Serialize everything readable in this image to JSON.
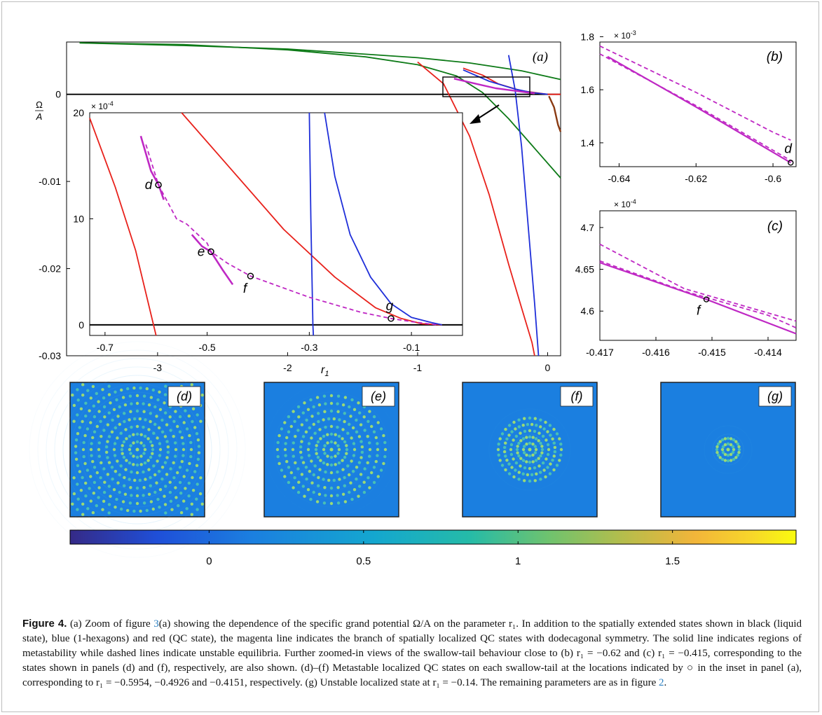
{
  "figure": {
    "caption_label": "Figure 4.",
    "caption_parts": {
      "p1": " (a)  Zoom of figure ",
      "ref3": "3",
      "p2": "(a) showing the dependence of the specific grand potential Ω/A on the parameter r₁. In addition to the spatially extended states shown in black (liquid state), blue (1-hexagons) and red (QC state), the magenta line indicates the branch of spatially localized QC states with dodecagonal symmetry. The solid line indicates regions of metastability while dashed lines indicate unstable equilibria. Further zoomed-in views of the swallow-tail behaviour close to (b) r₁ = −0.62 and (c) r₁ = −0.415, corresponding to the states shown in panels (d) and (f), respectively, are also shown. (d)–(f)  Metastable localized QC states on each swallow-tail at the locations indicated by ○ in the inset in panel (a), corresponding to r₁ = −0.5954, −0.4926 and −0.4151, respectively. (g)  Unstable localized state at r₁ = −0.14. The remaining parameters are as in figure ",
      "ref2": "2",
      "p3": "."
    }
  },
  "colors": {
    "liquid": "#000000",
    "hexagons": "#1f2fd9",
    "qc": "#e8211b",
    "localized": "#bf28c4",
    "extended_green": "#0d7a17",
    "brown": "#8a3a12"
  },
  "chart_data": [
    {
      "panel": "(a)",
      "type": "line",
      "xlabel": "r₁",
      "ylabel": "Ω/A",
      "xticks": [
        "-3",
        "-2",
        "-1",
        "0"
      ],
      "yticks": [
        "-0.03",
        "-0.02",
        "-0.01",
        "0"
      ],
      "xlim": [
        -3.7,
        0.1
      ],
      "ylim": [
        -0.03,
        0.006
      ],
      "series": [
        {
          "color": "green",
          "x": [
            -3.6,
            -2,
            -1,
            -0.6,
            -0.2,
            0.1
          ],
          "y": [
            0.0059,
            0.0052,
            0.0042,
            0.0035,
            0.0026,
            0.0017
          ]
        },
        {
          "color": "green",
          "x": [
            -3.6,
            -2,
            -1,
            -0.5,
            -0.3,
            0.1
          ],
          "y": [
            0.0059,
            0.005,
            0.0033,
            -0.0005,
            -0.0045,
            -0.0096
          ]
        },
        {
          "color": "black",
          "x": [
            -3.7,
            0.1
          ],
          "y": [
            0,
            0
          ]
        }
      ],
      "annotations": [
        "(a)",
        "inset box",
        "arrow"
      ]
    },
    {
      "panel": "(a) inset",
      "type": "line",
      "yscale_label": "× 10⁻⁴",
      "xticks": [
        "-0.7",
        "-0.5",
        "-0.3",
        "-0.1"
      ],
      "yticks": [
        "0",
        "10",
        "20"
      ],
      "xlim": [
        -0.73,
        0
      ],
      "ylim": [
        -1,
        20
      ],
      "point_labels": [
        "d",
        "e",
        "f",
        "g"
      ],
      "points": [
        {
          "label": "d",
          "x": -0.5954,
          "y": 13.2
        },
        {
          "label": "e",
          "x": -0.4926,
          "y": 6.9
        },
        {
          "label": "f",
          "x": -0.4151,
          "y": 4.6
        },
        {
          "label": "g",
          "x": -0.14,
          "y": 0.6
        }
      ]
    },
    {
      "panel": "(b)",
      "type": "line",
      "yscale_label": "× 10⁻³",
      "xticks": [
        "-0.64",
        "-0.62",
        "-0.6"
      ],
      "yticks": [
        "1.4",
        "1.6",
        "1.8"
      ],
      "xlim": [
        -0.645,
        -0.594
      ],
      "ylim": [
        1.31,
        1.78
      ],
      "point_label": "d"
    },
    {
      "panel": "(c)",
      "type": "line",
      "yscale_label": "× 10⁻⁴",
      "xticks": [
        "-0.417",
        "-0.416",
        "-0.415",
        "-0.414"
      ],
      "yticks": [
        "4.6",
        "4.65",
        "4.7"
      ],
      "xlim": [
        -0.417,
        -0.4135
      ],
      "ylim": [
        4.565,
        4.72
      ],
      "point_label": "f"
    },
    {
      "panel": "colorbar",
      "type": "heatmap",
      "ticks": [
        "0",
        "0.5",
        "1",
        "1.5"
      ],
      "range": [
        -0.45,
        1.9
      ]
    }
  ],
  "state_panels": [
    "(d)",
    "(e)",
    "(f)",
    "(g)"
  ]
}
